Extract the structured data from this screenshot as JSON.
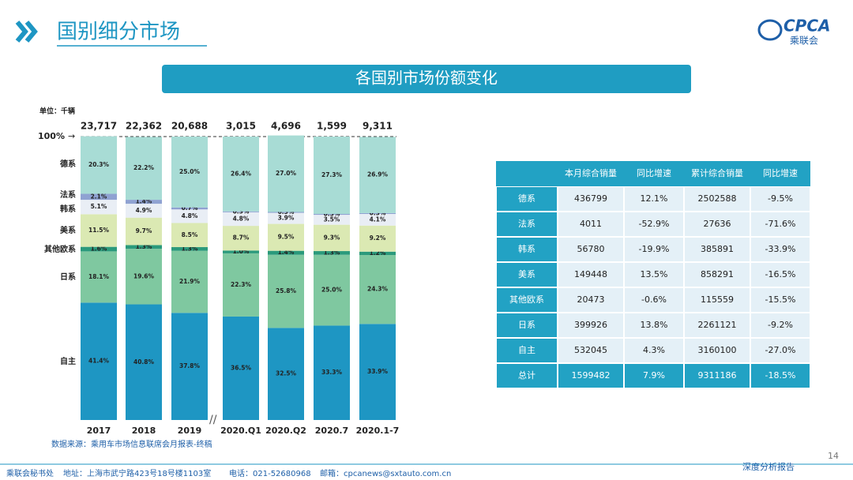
{
  "header": {
    "title": "国别细分市场",
    "banner": "各国别市场份额变化",
    "logo": "CPCA",
    "logo_sub": "乘联会"
  },
  "chart_data": {
    "type": "stacked_bar",
    "unit": "单位：千辆",
    "categories": [
      "2017",
      "2018",
      "2019",
      "2020.Q1",
      "2020.Q2",
      "2020.7",
      "2020.1-7"
    ],
    "totals": [
      {
        "value": 23717,
        "label": "23,717"
      },
      {
        "value": 22362,
        "label": "22,362"
      },
      {
        "value": 20688,
        "label": "20,688"
      },
      {
        "value": 3015,
        "label": "3,015"
      },
      {
        "value": 4696,
        "label": "4,696"
      },
      {
        "value": 1599,
        "label": "1,599"
      },
      {
        "value": 9311,
        "label": "9,311"
      }
    ],
    "ylim": [
      0,
      100
    ],
    "yticks": [
      {
        "value": 100,
        "label": "100%"
      }
    ],
    "series": [
      {
        "name": "自主",
        "color": "#1e96c3",
        "values": [
          41.4,
          40.8,
          37.8,
          36.5,
          32.5,
          33.3,
          33.9
        ],
        "value_labels": [
          "41.4%",
          "40.8%",
          "37.8%",
          "36.5%",
          "32.5%",
          "33.3%",
          "33.9%"
        ]
      },
      {
        "name": "日系",
        "color": "#7fc8a0",
        "values": [
          18.1,
          19.6,
          21.9,
          22.3,
          25.8,
          25.0,
          24.3
        ],
        "value_labels": [
          "18.1%",
          "19.6%",
          "21.9%",
          "22.3%",
          "25.8%",
          "25.0%",
          "24.3%"
        ]
      },
      {
        "name": "其他欧系",
        "color": "#2b9a7c",
        "values": [
          1.6,
          1.3,
          1.3,
          1.0,
          1.4,
          1.3,
          1.2
        ],
        "value_labels": [
          "1.6%",
          "1.3%",
          "1.3%",
          "1.0%",
          "1.4%",
          "1.3%",
          "1.2%"
        ]
      },
      {
        "name": "美系",
        "color": "#dbe9b3",
        "values": [
          11.5,
          9.7,
          8.5,
          8.7,
          9.5,
          9.3,
          9.2
        ],
        "value_labels": [
          "11.5%",
          "9.7%",
          "8.5%",
          "8.7%",
          "9.5%",
          "9.3%",
          "9.2%"
        ]
      },
      {
        "name": "韩系",
        "color": "#e9eef5",
        "values": [
          5.1,
          4.9,
          4.8,
          4.8,
          3.9,
          3.5,
          4.1
        ],
        "value_labels": [
          "5.1%",
          "4.9%",
          "4.8%",
          "4.8%",
          "3.9%",
          "3.5%",
          "4.1%"
        ]
      },
      {
        "name": "法系",
        "color": "#8fa2d2",
        "values": [
          2.1,
          1.4,
          0.7,
          0.3,
          0.3,
          0.3,
          0.3
        ],
        "value_labels": [
          "2.1%",
          "1.4%",
          "0.7%",
          "0.3%",
          "0.3%",
          "0.3%",
          "0.3%"
        ]
      },
      {
        "name": "德系",
        "color": "#a8dcd5",
        "values": [
          20.3,
          22.2,
          25.0,
          26.4,
          27.0,
          27.3,
          26.9
        ],
        "value_labels": [
          "20.3%",
          "22.2%",
          "25.0%",
          "26.4%",
          "27.0%",
          "27.3%",
          "26.9%"
        ]
      }
    ],
    "source": "数据来源：乘用车市场信息联席会月报表-终稿"
  },
  "table": {
    "header": [
      "本月综合销量",
      "同比增速",
      "累计综合销量",
      "同比增速"
    ],
    "rows": [
      [
        "德系",
        436799,
        "12.1%",
        2502588,
        "-9.5%"
      ],
      [
        "法系",
        4011,
        "-52.9%",
        27636,
        "-71.6%"
      ],
      [
        "韩系",
        56780,
        "-19.9%",
        385891,
        "-33.9%"
      ],
      [
        "美系",
        149448,
        "13.5%",
        858291,
        "-16.5%"
      ],
      [
        "其他欧系",
        20473,
        "-0.6%",
        115559,
        "-15.5%"
      ],
      [
        "日系",
        399926,
        "13.8%",
        2261121,
        "-9.2%"
      ],
      [
        "自主",
        532045,
        "4.3%",
        3160100,
        "-27.0%"
      ],
      [
        "总计",
        1599482,
        "7.9%",
        9311186,
        "-18.5%"
      ]
    ]
  },
  "footer": {
    "org": "乘联会秘书处",
    "address": "地址：上海市武宁路423号18号楼1103室",
    "phone": "电话：021-52680968",
    "email": "邮箱：cpcanews@sxtauto.com.cn",
    "report": "深度分析报告",
    "page": 14
  }
}
